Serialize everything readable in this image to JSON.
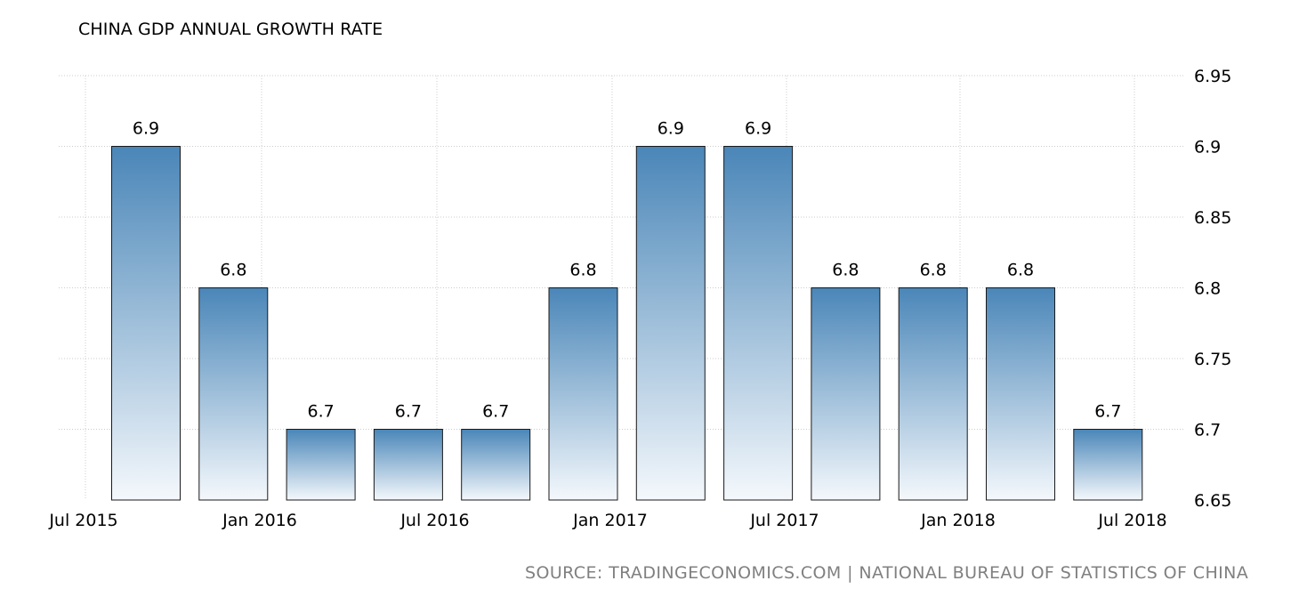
{
  "chart_data": {
    "type": "bar",
    "title": "CHINA GDP ANNUAL GROWTH RATE",
    "source": "SOURCE: TRADINGECONOMICS.COM | NATIONAL BUREAU OF STATISTICS OF CHINA",
    "periods": [
      "2015-Q3",
      "2015-Q4",
      "2016-Q1",
      "2016-Q2",
      "2016-Q3",
      "2016-Q4",
      "2017-Q1",
      "2017-Q2",
      "2017-Q3",
      "2017-Q4",
      "2018-Q1",
      "2018-Q2"
    ],
    "values": [
      6.9,
      6.8,
      6.7,
      6.7,
      6.7,
      6.8,
      6.9,
      6.9,
      6.8,
      6.8,
      6.8,
      6.7
    ],
    "data_labels": [
      "6.9",
      "6.8",
      "6.7",
      "6.7",
      "6.7",
      "6.8",
      "6.9",
      "6.9",
      "6.8",
      "6.8",
      "6.8",
      "6.7"
    ],
    "x_tick_labels": [
      "Jul 2015",
      "Jan 2016",
      "Jul 2016",
      "Jan 2017",
      "Jul 2017",
      "Jan 2018",
      "Jul 2018"
    ],
    "y_ticks": [
      6.65,
      6.7,
      6.75,
      6.8,
      6.85,
      6.9,
      6.95
    ],
    "y_tick_labels": [
      "6.65",
      "6.7",
      "6.75",
      "6.8",
      "6.85",
      "6.9",
      "6.95"
    ],
    "ylim": [
      6.65,
      6.95
    ],
    "y_axis_side": "right",
    "grid": true,
    "colors": {
      "bar_top": "#4a86b8",
      "bar_bottom": "#f4f8fc",
      "bar_stroke": "#1a1a1a",
      "grid": "#cccccc",
      "source_text": "#808080"
    }
  }
}
